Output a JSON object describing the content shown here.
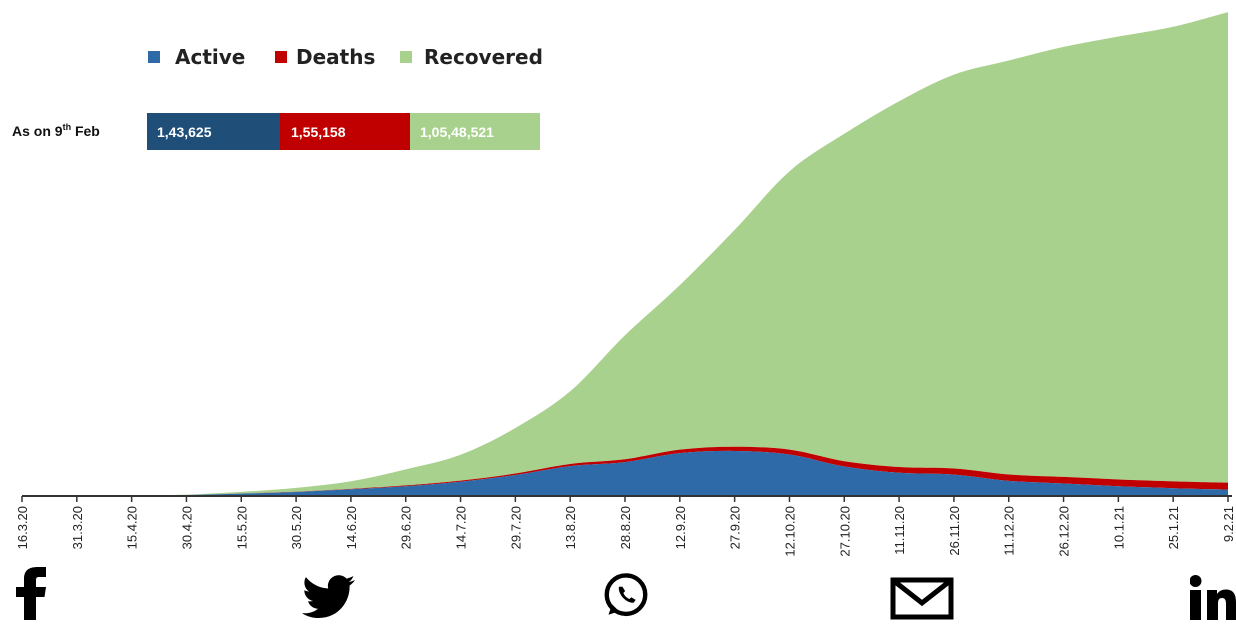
{
  "chart_data": {
    "type": "area",
    "stacked": true,
    "legend": {
      "placement": "top-left",
      "entries": [
        "Active",
        "Deaths",
        "Recovered"
      ]
    },
    "summary": {
      "label": "As on 9",
      "label_sup": "th",
      "label_tail": " Feb",
      "values": [
        "1,43,625",
        "1,55,158",
        "1,05,48,521"
      ]
    },
    "colors": {
      "active": "#2e6aa8",
      "active_dark": "#1f4e79",
      "deaths": "#c00000",
      "recovered": "#a9d18e",
      "axis": "#333333"
    },
    "x_ticks": [
      "16.3.20",
      "31.3.20",
      "15.4.20",
      "30.4.20",
      "15.5.20",
      "30.5.20",
      "14.6.20",
      "29.6.20",
      "14.7.20",
      "29.7.20",
      "13.8.20",
      "28.8.20",
      "12.9.20",
      "27.9.20",
      "12.10.20",
      "27.10.20",
      "11.11.20",
      "26.11.20",
      "11.12.20",
      "26.12.20",
      "10.1.21",
      "25.1.21",
      "9.2.21"
    ],
    "ylim": [
      0,
      10850000
    ],
    "series": [
      {
        "name": "Active",
        "values": [
          200,
          1500,
          9000,
          22000,
          54000,
          90000,
          150000,
          220000,
          320000,
          470000,
          670000,
          760000,
          960000,
          1010000,
          930000,
          660000,
          520000,
          480000,
          340000,
          280000,
          220000,
          175000,
          143625
        ]
      },
      {
        "name": "Deaths",
        "values": [
          2,
          40,
          390,
          1080,
          3030,
          5170,
          9520,
          16900,
          24300,
          34200,
          47000,
          62500,
          78600,
          94500,
          108300,
          119500,
          129000,
          136200,
          142600,
          147600,
          151100,
          153600,
          155158
        ]
      },
      {
        "name": "Recovered",
        "values": [
          10,
          150,
          2000,
          9000,
          36000,
          86000,
          170000,
          360000,
          580000,
          1020000,
          1630000,
          2780000,
          3690000,
          4860000,
          6240000,
          7340000,
          8200000,
          8830000,
          9280000,
          9640000,
          9930000,
          10190000,
          10548521
        ]
      }
    ]
  },
  "share": {
    "icons": [
      "facebook-icon",
      "twitter-icon",
      "whatsapp-icon",
      "mail-icon",
      "linkedin-icon"
    ]
  }
}
